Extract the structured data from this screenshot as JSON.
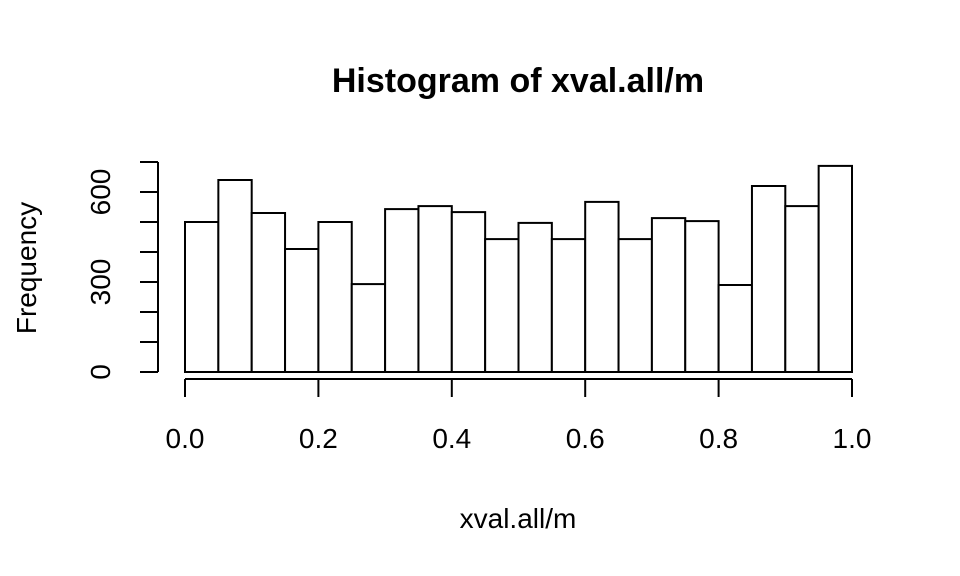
{
  "chart_data": {
    "type": "bar",
    "title": "Histogram of xval.all/m",
    "xlabel": "xval.all/m",
    "ylabel": "Frequency",
    "xlim": [
      0.0,
      1.0
    ],
    "ylim": [
      0,
      700
    ],
    "x_ticks": [
      "0.0",
      "0.2",
      "0.4",
      "0.6",
      "0.8",
      "1.0"
    ],
    "y_ticks": [
      "0",
      "300",
      "600"
    ],
    "y_minor_ticks": [
      0,
      100,
      200,
      300,
      400,
      500,
      600,
      700
    ],
    "bin_width": 0.05,
    "bins": [
      {
        "start": 0.0,
        "end": 0.05,
        "count": 500
      },
      {
        "start": 0.05,
        "end": 0.1,
        "count": 640
      },
      {
        "start": 0.1,
        "end": 0.15,
        "count": 530
      },
      {
        "start": 0.15,
        "end": 0.2,
        "count": 410
      },
      {
        "start": 0.2,
        "end": 0.25,
        "count": 500
      },
      {
        "start": 0.25,
        "end": 0.3,
        "count": 293
      },
      {
        "start": 0.3,
        "end": 0.35,
        "count": 543
      },
      {
        "start": 0.35,
        "end": 0.4,
        "count": 553
      },
      {
        "start": 0.4,
        "end": 0.45,
        "count": 533
      },
      {
        "start": 0.45,
        "end": 0.5,
        "count": 443
      },
      {
        "start": 0.5,
        "end": 0.55,
        "count": 497
      },
      {
        "start": 0.55,
        "end": 0.6,
        "count": 443
      },
      {
        "start": 0.6,
        "end": 0.65,
        "count": 567
      },
      {
        "start": 0.65,
        "end": 0.7,
        "count": 443
      },
      {
        "start": 0.7,
        "end": 0.75,
        "count": 513
      },
      {
        "start": 0.75,
        "end": 0.8,
        "count": 503
      },
      {
        "start": 0.8,
        "end": 0.85,
        "count": 290
      },
      {
        "start": 0.85,
        "end": 0.9,
        "count": 620
      },
      {
        "start": 0.9,
        "end": 0.95,
        "count": 553
      },
      {
        "start": 0.95,
        "end": 1.0,
        "count": 687
      }
    ]
  }
}
